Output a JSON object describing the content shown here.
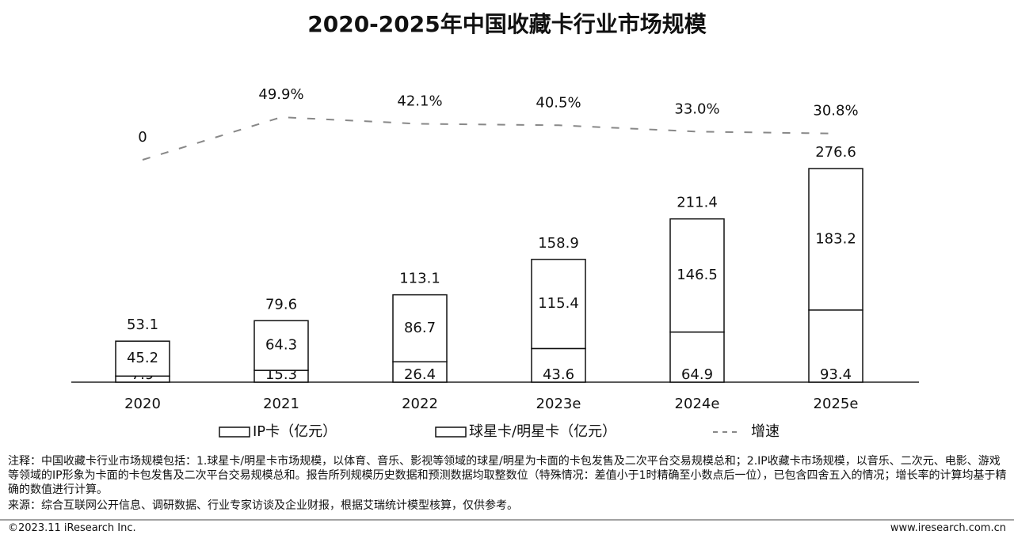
{
  "chart_data": {
    "type": "bar",
    "title": "2020-2025年中国收藏卡行业市场规模",
    "categories": [
      "2020",
      "2021",
      "2022",
      "2023e",
      "2024e",
      "2025e"
    ],
    "series": [
      {
        "name": "IP卡（亿元）",
        "color": "#ffffff",
        "values": [
          7.9,
          15.3,
          26.4,
          43.6,
          64.9,
          93.4
        ]
      },
      {
        "name": "球星卡/明星卡（亿元）",
        "color": "#ffffff",
        "values": [
          45.2,
          64.3,
          86.7,
          115.4,
          146.5,
          183.2
        ]
      },
      {
        "name": "增速",
        "type": "line",
        "axis": "y2",
        "color": "#888888",
        "values": [
          0,
          49.9,
          42.1,
          40.5,
          33.0,
          30.8
        ],
        "value_labels": [
          "0",
          "49.9%",
          "42.1%",
          "40.5%",
          "33.0%",
          "30.8%"
        ]
      }
    ],
    "totals": [
      53.1,
      79.6,
      113.1,
      158.9,
      211.4,
      276.6
    ],
    "notes": "注释：中国收藏卡行业市场规模包括：1.球星卡/明星卡市场规模，以体育、音乐、影视等领域的球星/明星为卡面的卡包发售及二次平台交易规模总和；2.IP收藏卡市场规模，以音乐、二次元、电影、游戏等领域的IP形象为卡面的卡包发售及二次平台交易规模总和。报告所列规模历史数据和预测数据均取整数位（特殊情况：差值小于1时精确至小数点后一位），已包含四舍五入的情况；增长率的计算均基于精确的数值进行计算。",
    "source": "来源：综合互联网公开信息、调研数据、行业专家访谈及企业财报，根据艾瑞统计模型核算，仅供参考。",
    "copyright": "©2023.11 iResearch Inc.",
    "website": "www.iresearch.com.cn"
  }
}
